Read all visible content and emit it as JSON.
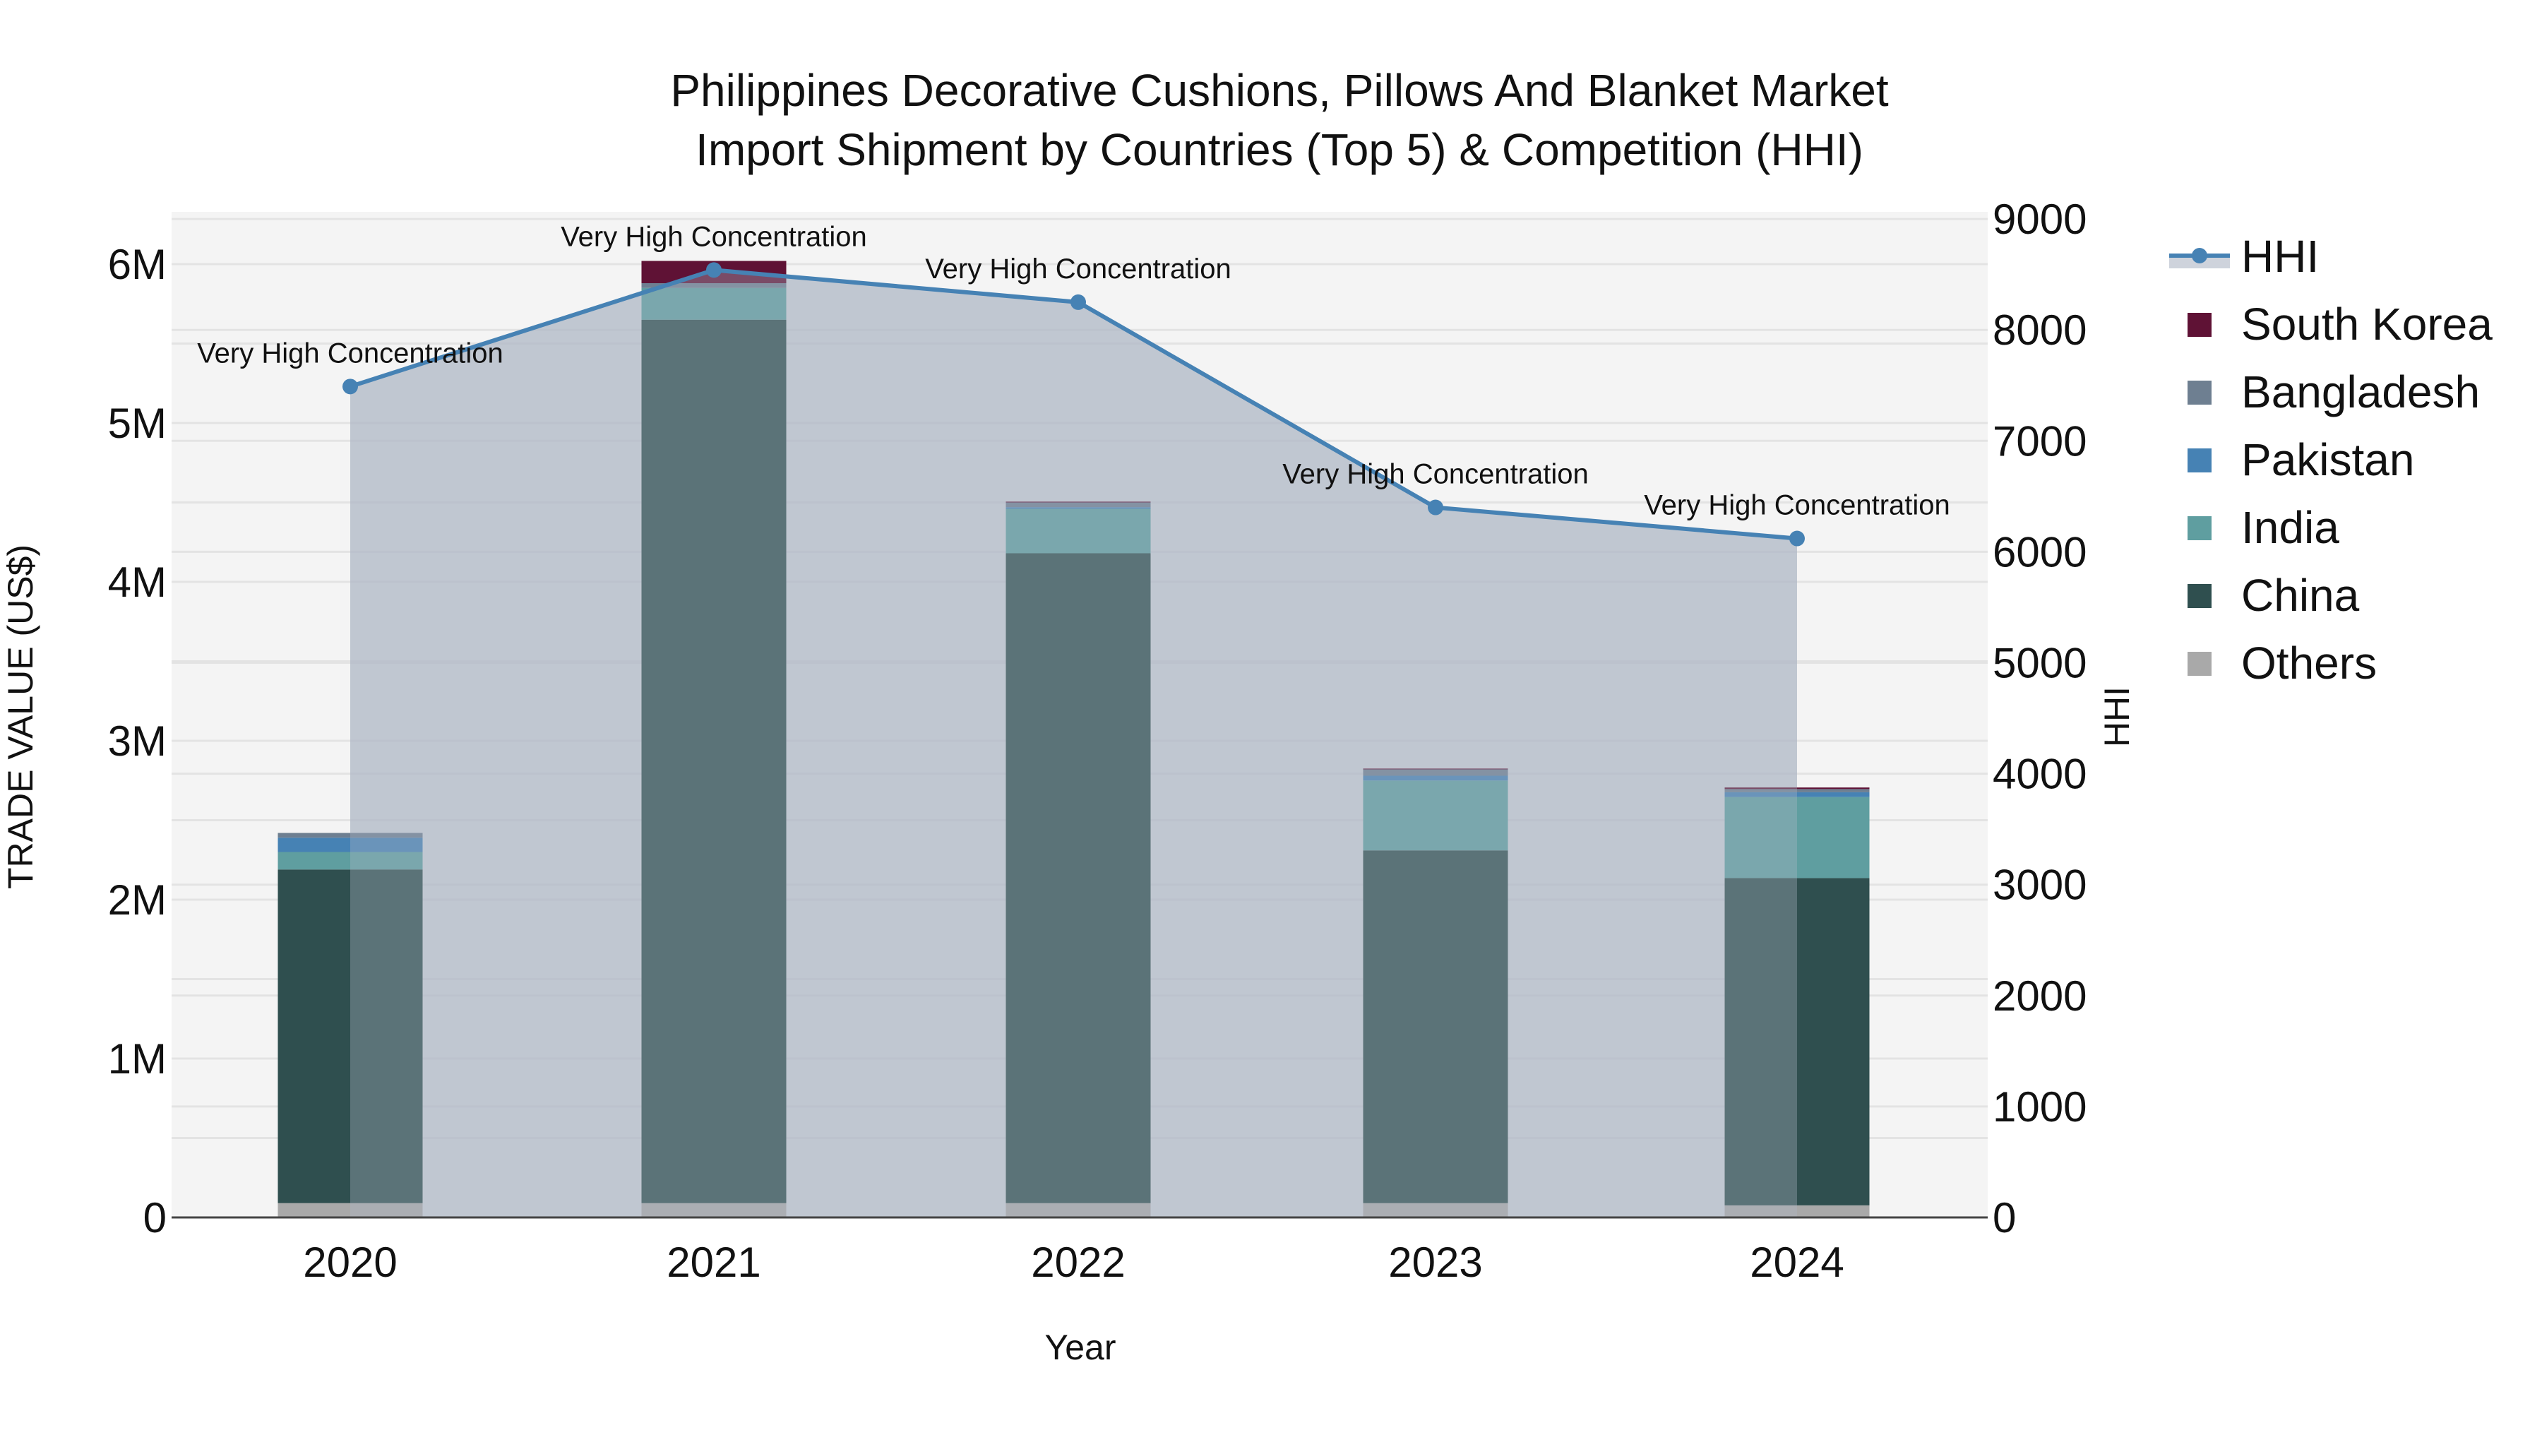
{
  "title": {
    "line1": "Philippines Decorative Cushions, Pillows And Blanket Market",
    "line2": "Import Shipment by Countries (Top 5) & Competition (HHI)"
  },
  "axes": {
    "x_title": "Year",
    "y_left_title": "TRADE VALUE (US$)",
    "y_right_title": "HHI",
    "y_left_ticks": [
      "0",
      "1M",
      "2M",
      "3M",
      "4M",
      "5M",
      "6M"
    ],
    "y_right_ticks": [
      "0",
      "1000",
      "2000",
      "3000",
      "4000",
      "5000",
      "6000",
      "7000",
      "8000",
      "9000"
    ],
    "x_ticks": [
      "2020",
      "2021",
      "2022",
      "2023",
      "2024"
    ]
  },
  "legend": [
    {
      "label": "HHI",
      "type": "line",
      "color": "#4682b4"
    },
    {
      "label": "South Korea",
      "type": "box",
      "color": "#5f1235"
    },
    {
      "label": "Bangladesh",
      "type": "box",
      "color": "#6e7f91"
    },
    {
      "label": "Pakistan",
      "type": "box",
      "color": "#4682b4"
    },
    {
      "label": "India",
      "type": "box",
      "color": "#5f9ea0"
    },
    {
      "label": "China",
      "type": "box",
      "color": "#2f4f4f"
    },
    {
      "label": "Others",
      "type": "box",
      "color": "#a9a9a9"
    }
  ],
  "annotations": [
    "Very High Concentration",
    "Very High Concentration",
    "Very High Concentration",
    "Very High Concentration",
    "Very High Concentration"
  ],
  "colors": {
    "plot_bg": "#f4f4f4",
    "grid": "#e3e3e3",
    "hhi_line": "#4682b4",
    "hhi_fill": "rgba(176,184,198,0.62)"
  },
  "chart_data": {
    "type": "bar",
    "stacked": true,
    "title": "Philippines Decorative Cushions, Pillows And Blanket Market Import Shipment by Countries (Top 5) & Competition (HHI)",
    "xlabel": "Year",
    "ylabel": "TRADE VALUE (US$)",
    "y2label": "HHI",
    "ylim": [
      0,
      6300000
    ],
    "y2lim": [
      0,
      9050
    ],
    "categories": [
      "2020",
      "2021",
      "2022",
      "2023",
      "2024"
    ],
    "series": [
      {
        "name": "Others",
        "color": "#a9a9a9",
        "values": [
          90000,
          90000,
          90000,
          90000,
          76000
        ]
      },
      {
        "name": "China",
        "color": "#2f4f4f",
        "values": [
          2100000,
          5560000,
          4090000,
          2220000,
          2060000
        ]
      },
      {
        "name": "India",
        "color": "#5f9ea0",
        "values": [
          110000,
          200000,
          280000,
          440000,
          510000
        ]
      },
      {
        "name": "Pakistan",
        "color": "#4682b4",
        "values": [
          90000,
          0,
          10000,
          30000,
          30000
        ]
      },
      {
        "name": "Bangladesh",
        "color": "#6e7f91",
        "values": [
          30000,
          30000,
          30000,
          40000,
          20000
        ]
      },
      {
        "name": "South Korea",
        "color": "#5f1235",
        "values": [
          0,
          140000,
          5000,
          5000,
          10000
        ]
      }
    ],
    "line_series": {
      "name": "HHI",
      "axis": "right",
      "color": "#4682b4",
      "fill": "tozeroy",
      "values": [
        7490,
        8540,
        8250,
        6400,
        6120
      ],
      "labels": [
        "Very High Concentration",
        "Very High Concentration",
        "Very High Concentration",
        "Very High Concentration",
        "Very High Concentration"
      ]
    },
    "grid": true,
    "legend_position": "right"
  }
}
